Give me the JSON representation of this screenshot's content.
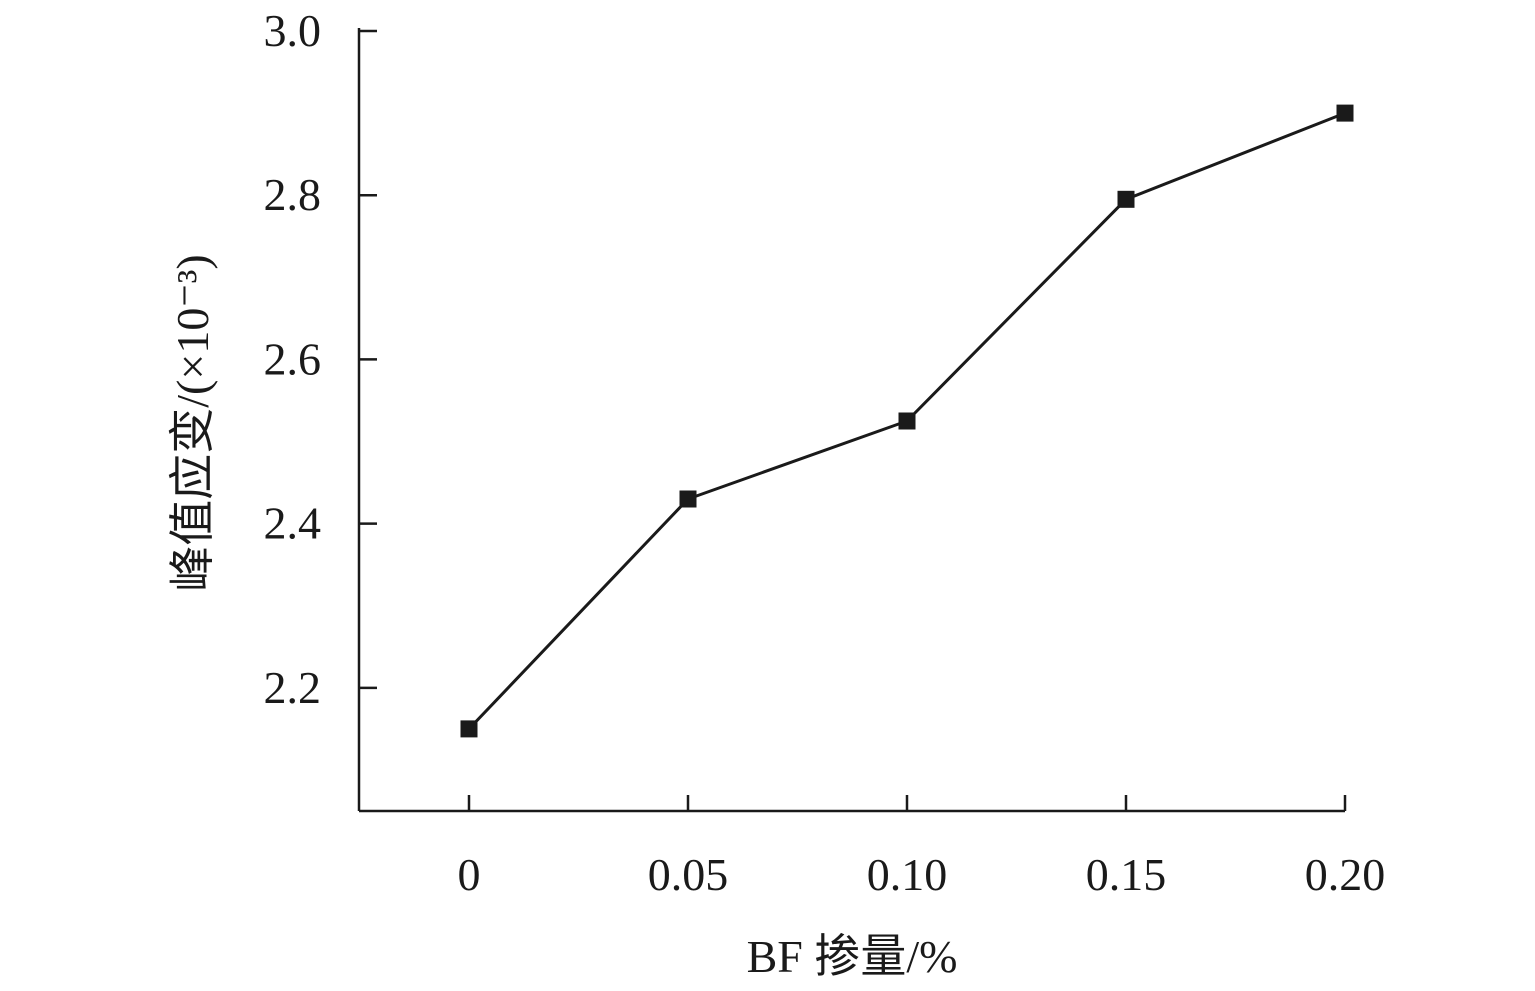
{
  "chart_data": {
    "type": "line",
    "title": "",
    "xlabel": "BF 掺量/%",
    "ylabel": "峰值应变/(×10⁻³)",
    "categories": [
      "0",
      "0.05",
      "0.10",
      "0.15",
      "0.20"
    ],
    "x": [
      0,
      0.05,
      0.1,
      0.15,
      0.2
    ],
    "series": [
      {
        "name": "",
        "values": [
          2.15,
          2.43,
          2.525,
          2.795,
          2.9
        ]
      }
    ],
    "yticks": [
      "2.2",
      "2.4",
      "2.6",
      "2.8",
      "3.0"
    ],
    "ytick_values": [
      2.2,
      2.4,
      2.6,
      2.8,
      3.0
    ],
    "ylim": [
      2.05,
      3.0
    ],
    "xlim": [
      -0.025,
      0.2
    ],
    "marker": "square",
    "grid": false,
    "legend": "none",
    "colors": {
      "line": "#1a1a1a",
      "axis": "#1a1a1a",
      "marker": "#1a1a1a"
    }
  }
}
